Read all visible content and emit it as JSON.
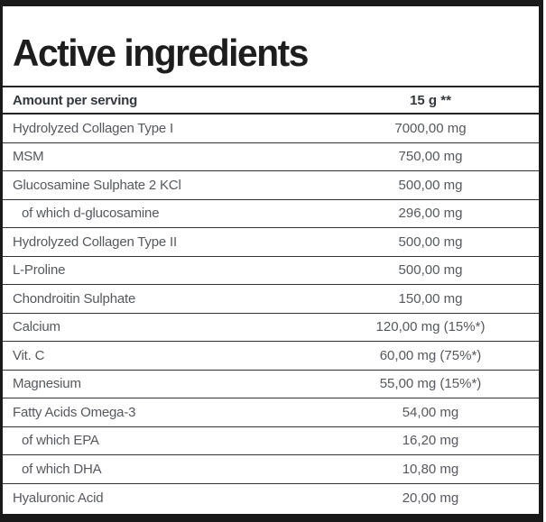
{
  "title": "Active ingredients",
  "table": {
    "header": {
      "label": "Amount per serving",
      "value": "15 g **"
    },
    "rows": [
      {
        "label": "Hydrolyzed Collagen Type I",
        "value": "7000,00 mg",
        "indent": false
      },
      {
        "label": "MSM",
        "value": "750,00 mg",
        "indent": false
      },
      {
        "label": "Glucosamine Sulphate 2 KCl",
        "value": "500,00 mg",
        "indent": false
      },
      {
        "label": "of which d-glucosamine",
        "value": "296,00 mg",
        "indent": true
      },
      {
        "label": "Hydrolyzed Collagen Type II",
        "value": "500,00 mg",
        "indent": false
      },
      {
        "label": "L-Proline",
        "value": "500,00 mg",
        "indent": false
      },
      {
        "label": "Chondroitin Sulphate",
        "value": "150,00 mg",
        "indent": false
      },
      {
        "label": "Calcium",
        "value": "120,00 mg (15%*)",
        "indent": false
      },
      {
        "label": "Vit. C",
        "value": "60,00 mg (75%*)",
        "indent": false
      },
      {
        "label": "Magnesium",
        "value": "55,00 mg (15%*)",
        "indent": false
      },
      {
        "label": "Fatty Acids Omega-3",
        "value": "54,00 mg",
        "indent": false
      },
      {
        "label": "of which EPA",
        "value": "16,20 mg",
        "indent": true
      },
      {
        "label": "of which DHA",
        "value": "10,80 mg",
        "indent": true
      },
      {
        "label": "Hyaluronic Acid",
        "value": "20,00 mg",
        "indent": false
      }
    ]
  },
  "colors": {
    "frame_black": "#191919",
    "title_text": "#1d1d1d",
    "header_text": "#34383c",
    "row_text": "#55585d",
    "divider": "#313438",
    "background": "#ffffff"
  }
}
